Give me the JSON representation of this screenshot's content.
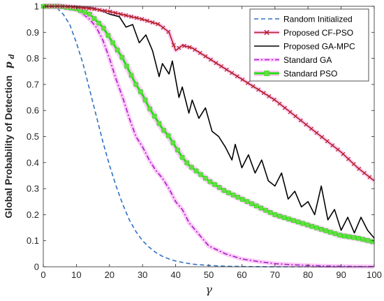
{
  "chart_data": {
    "type": "line",
    "xlabel": "γ",
    "ylabel": "Global Probability of Detection",
    "ylabel_symbol": "p",
    "ylabel_subscript": "d",
    "xlim": [
      0,
      100
    ],
    "ylim": [
      0,
      1
    ],
    "xticks": [
      0,
      10,
      20,
      30,
      40,
      50,
      60,
      70,
      80,
      90,
      100
    ],
    "yticks": [
      0,
      0.1,
      0.2,
      0.3,
      0.4,
      0.5,
      0.6,
      0.7,
      0.8,
      0.9,
      1
    ],
    "ytick_labels": [
      "0",
      "0.1",
      "0.2",
      "0.3",
      "0.4",
      "0.5",
      "0.6",
      "0.7",
      "0.8",
      "0.9",
      "1"
    ],
    "grid": false,
    "legend_position": "top-right",
    "series": [
      {
        "name": "Random Initialized",
        "color": "#2e6fc0",
        "style": "dashed",
        "marker": "none",
        "x": [
          0,
          2,
          4,
          6,
          8,
          10,
          12,
          14,
          16,
          18,
          20,
          22,
          24,
          26,
          28,
          30,
          32,
          34,
          36,
          38,
          40,
          45,
          50,
          55,
          60,
          65,
          70,
          75,
          80,
          90,
          100
        ],
        "values": [
          1,
          1,
          0.995,
          0.97,
          0.93,
          0.86,
          0.78,
          0.68,
          0.58,
          0.48,
          0.39,
          0.31,
          0.24,
          0.18,
          0.135,
          0.1,
          0.075,
          0.055,
          0.04,
          0.03,
          0.022,
          0.01,
          0.005,
          0.002,
          0.001,
          0.0005,
          0,
          0,
          0,
          0,
          0
        ]
      },
      {
        "name": "Proposed CF-PSO",
        "color": "#b22222",
        "halo": "#ff9ef2",
        "style": "solid",
        "marker": "x",
        "x": [
          1,
          5,
          10,
          15,
          20,
          25,
          30,
          35,
          38,
          40,
          42,
          45,
          50,
          55,
          60,
          65,
          70,
          75,
          80,
          85,
          90,
          95,
          100
        ],
        "values": [
          1,
          1,
          0.997,
          0.99,
          0.98,
          0.965,
          0.95,
          0.93,
          0.9,
          0.83,
          0.85,
          0.84,
          0.8,
          0.76,
          0.72,
          0.68,
          0.64,
          0.59,
          0.54,
          0.49,
          0.44,
          0.38,
          0.33
        ]
      },
      {
        "name": "Proposed GA-MPC",
        "color": "#000000",
        "style": "solid",
        "marker": "none",
        "x": [
          1,
          5,
          10,
          15,
          20,
          23,
          25,
          27,
          29,
          31,
          33,
          35,
          36,
          38,
          39,
          41,
          42,
          44,
          45,
          47,
          49,
          51,
          53,
          55,
          57,
          58,
          60,
          62,
          64,
          66,
          68,
          70,
          72,
          74,
          76,
          78,
          80,
          82,
          84,
          86,
          88,
          90,
          92,
          94,
          96,
          98,
          100
        ],
        "values": [
          1,
          1,
          1,
          0.995,
          0.97,
          0.96,
          0.92,
          0.93,
          0.86,
          0.89,
          0.83,
          0.73,
          0.78,
          0.74,
          0.79,
          0.65,
          0.69,
          0.59,
          0.64,
          0.57,
          0.61,
          0.52,
          0.5,
          0.46,
          0.41,
          0.47,
          0.38,
          0.43,
          0.36,
          0.41,
          0.33,
          0.31,
          0.36,
          0.26,
          0.29,
          0.23,
          0.25,
          0.2,
          0.31,
          0.18,
          0.22,
          0.14,
          0.19,
          0.13,
          0.19,
          0.14,
          0.11
        ]
      },
      {
        "name": "Standard GA",
        "color": "#a020c8",
        "halo": "#ff9ef2",
        "style": "dashdot",
        "marker": "none",
        "x": [
          0,
          5,
          10,
          14,
          16,
          18,
          20,
          22,
          24,
          26,
          28,
          30,
          32,
          34,
          36,
          38,
          40,
          42,
          44,
          46,
          48,
          50,
          55,
          60,
          65,
          70,
          75,
          80,
          85,
          90,
          95,
          100
        ],
        "values": [
          1,
          1,
          0.99,
          0.95,
          0.92,
          0.87,
          0.8,
          0.72,
          0.65,
          0.57,
          0.5,
          0.46,
          0.41,
          0.37,
          0.34,
          0.3,
          0.25,
          0.22,
          0.17,
          0.14,
          0.11,
          0.08,
          0.05,
          0.03,
          0.02,
          0.012,
          0.008,
          0.005,
          0.003,
          0.002,
          0.001,
          0.001
        ]
      },
      {
        "name": "Standard PSO",
        "color": "#22dd11",
        "marker_color": "#66dd44",
        "halo": "#ff9ef2",
        "style": "solid",
        "marker": "square",
        "x": [
          0,
          5,
          10,
          14,
          18,
          20,
          22,
          24,
          26,
          28,
          30,
          32,
          34,
          36,
          38,
          40,
          42,
          44,
          46,
          48,
          50,
          55,
          60,
          65,
          70,
          75,
          80,
          85,
          90,
          95,
          100
        ],
        "values": [
          1,
          1,
          0.99,
          0.97,
          0.92,
          0.88,
          0.84,
          0.8,
          0.75,
          0.7,
          0.66,
          0.61,
          0.57,
          0.53,
          0.5,
          0.46,
          0.42,
          0.39,
          0.37,
          0.35,
          0.33,
          0.29,
          0.26,
          0.23,
          0.2,
          0.18,
          0.16,
          0.14,
          0.12,
          0.11,
          0.095
        ]
      }
    ]
  }
}
